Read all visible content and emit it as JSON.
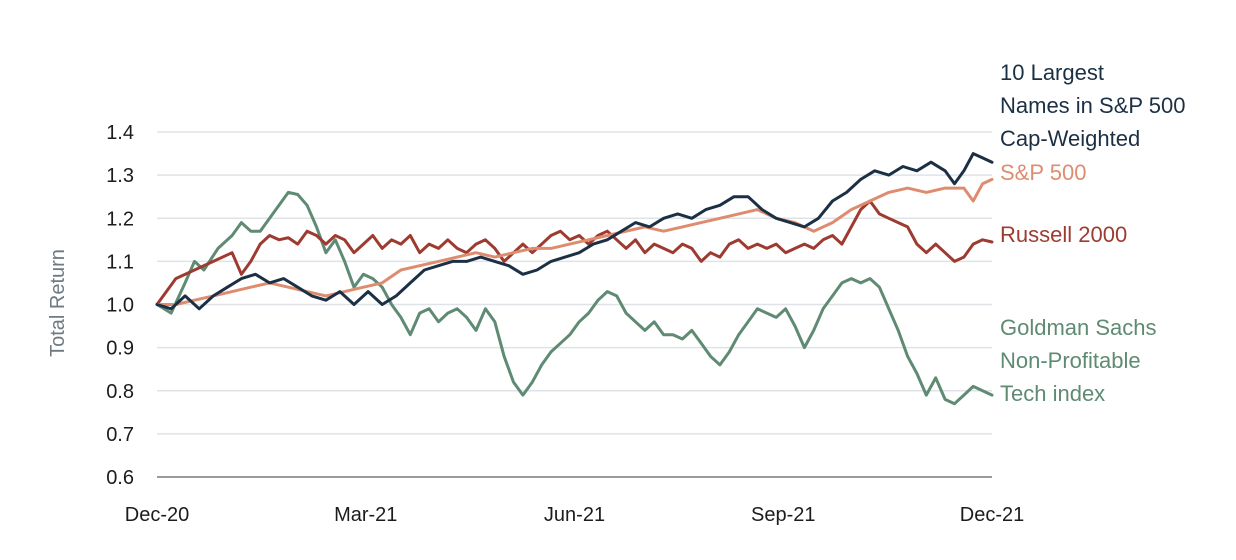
{
  "chart_data": {
    "type": "line",
    "title": "",
    "xlabel": "",
    "ylabel": "Total Return",
    "ylim": [
      0.6,
      1.4
    ],
    "yticks": [
      "1.4",
      "1.3",
      "1.2",
      "1.1",
      "1.0",
      "0.9",
      "0.8",
      "0.7",
      "0.6"
    ],
    "xticks": [
      "Dec-20",
      "Mar-21",
      "Jun-21",
      "Sep-21",
      "Dec-21"
    ],
    "grid": "horizontal",
    "legend": "end-of-line labels",
    "series": [
      {
        "name": "Goldman Sachs Non-Profitable Tech index",
        "label_lines": [
          "Goldman Sachs",
          "Non-Profitable",
          "Tech index"
        ],
        "color": "#5f8a73",
        "points": [
          [
            0,
            1.0
          ],
          [
            3,
            0.98
          ],
          [
            6,
            1.05
          ],
          [
            8,
            1.1
          ],
          [
            10,
            1.08
          ],
          [
            13,
            1.13
          ],
          [
            16,
            1.16
          ],
          [
            18,
            1.19
          ],
          [
            20,
            1.17
          ],
          [
            22,
            1.17
          ],
          [
            24,
            1.2
          ],
          [
            26,
            1.23
          ],
          [
            28,
            1.26
          ],
          [
            30,
            1.255
          ],
          [
            32,
            1.23
          ],
          [
            34,
            1.18
          ],
          [
            36,
            1.12
          ],
          [
            38,
            1.15
          ],
          [
            40,
            1.1
          ],
          [
            42,
            1.04
          ],
          [
            44,
            1.07
          ],
          [
            46,
            1.06
          ],
          [
            48,
            1.04
          ],
          [
            50,
            1.0
          ],
          [
            52,
            0.97
          ],
          [
            54,
            0.93
          ],
          [
            56,
            0.98
          ],
          [
            58,
            0.99
          ],
          [
            60,
            0.96
          ],
          [
            62,
            0.98
          ],
          [
            64,
            0.99
          ],
          [
            66,
            0.97
          ],
          [
            68,
            0.94
          ],
          [
            70,
            0.99
          ],
          [
            72,
            0.96
          ],
          [
            74,
            0.88
          ],
          [
            76,
            0.82
          ],
          [
            78,
            0.79
          ],
          [
            80,
            0.82
          ],
          [
            82,
            0.86
          ],
          [
            84,
            0.89
          ],
          [
            86,
            0.91
          ],
          [
            88,
            0.93
          ],
          [
            90,
            0.96
          ],
          [
            92,
            0.98
          ],
          [
            94,
            1.01
          ],
          [
            96,
            1.03
          ],
          [
            98,
            1.02
          ],
          [
            100,
            0.98
          ],
          [
            102,
            0.96
          ],
          [
            104,
            0.94
          ],
          [
            106,
            0.96
          ],
          [
            108,
            0.93
          ],
          [
            110,
            0.93
          ],
          [
            112,
            0.92
          ],
          [
            114,
            0.94
          ],
          [
            116,
            0.91
          ],
          [
            118,
            0.88
          ],
          [
            120,
            0.86
          ],
          [
            122,
            0.89
          ],
          [
            124,
            0.93
          ],
          [
            126,
            0.96
          ],
          [
            128,
            0.99
          ],
          [
            130,
            0.98
          ],
          [
            132,
            0.97
          ],
          [
            134,
            0.99
          ],
          [
            136,
            0.95
          ],
          [
            138,
            0.9
          ],
          [
            140,
            0.94
          ],
          [
            142,
            0.99
          ],
          [
            144,
            1.02
          ],
          [
            146,
            1.05
          ],
          [
            148,
            1.06
          ],
          [
            150,
            1.05
          ],
          [
            152,
            1.06
          ],
          [
            154,
            1.04
          ],
          [
            156,
            0.99
          ],
          [
            158,
            0.94
          ],
          [
            160,
            0.88
          ],
          [
            162,
            0.84
          ],
          [
            164,
            0.79
          ],
          [
            166,
            0.83
          ],
          [
            168,
            0.78
          ],
          [
            170,
            0.77
          ],
          [
            172,
            0.79
          ],
          [
            174,
            0.81
          ],
          [
            176,
            0.8
          ],
          [
            178,
            0.79
          ]
        ]
      },
      {
        "name": "Russell 2000",
        "color": "#9e3b30",
        "points": [
          [
            0,
            1.0
          ],
          [
            4,
            1.06
          ],
          [
            8,
            1.08
          ],
          [
            12,
            1.1
          ],
          [
            16,
            1.12
          ],
          [
            18,
            1.07
          ],
          [
            20,
            1.1
          ],
          [
            22,
            1.14
          ],
          [
            24,
            1.16
          ],
          [
            26,
            1.15
          ],
          [
            28,
            1.155
          ],
          [
            30,
            1.14
          ],
          [
            32,
            1.17
          ],
          [
            34,
            1.16
          ],
          [
            36,
            1.14
          ],
          [
            38,
            1.16
          ],
          [
            40,
            1.15
          ],
          [
            42,
            1.12
          ],
          [
            44,
            1.14
          ],
          [
            46,
            1.16
          ],
          [
            48,
            1.13
          ],
          [
            50,
            1.15
          ],
          [
            52,
            1.14
          ],
          [
            54,
            1.16
          ],
          [
            56,
            1.12
          ],
          [
            58,
            1.14
          ],
          [
            60,
            1.13
          ],
          [
            62,
            1.15
          ],
          [
            64,
            1.13
          ],
          [
            66,
            1.12
          ],
          [
            68,
            1.14
          ],
          [
            70,
            1.15
          ],
          [
            72,
            1.13
          ],
          [
            74,
            1.1
          ],
          [
            76,
            1.12
          ],
          [
            78,
            1.14
          ],
          [
            80,
            1.12
          ],
          [
            82,
            1.14
          ],
          [
            84,
            1.16
          ],
          [
            86,
            1.17
          ],
          [
            88,
            1.15
          ],
          [
            90,
            1.16
          ],
          [
            92,
            1.14
          ],
          [
            94,
            1.16
          ],
          [
            96,
            1.17
          ],
          [
            98,
            1.15
          ],
          [
            100,
            1.13
          ],
          [
            102,
            1.15
          ],
          [
            104,
            1.12
          ],
          [
            106,
            1.14
          ],
          [
            108,
            1.13
          ],
          [
            110,
            1.12
          ],
          [
            112,
            1.14
          ],
          [
            114,
            1.13
          ],
          [
            116,
            1.1
          ],
          [
            118,
            1.12
          ],
          [
            120,
            1.11
          ],
          [
            122,
            1.14
          ],
          [
            124,
            1.15
          ],
          [
            126,
            1.13
          ],
          [
            128,
            1.14
          ],
          [
            130,
            1.13
          ],
          [
            132,
            1.14
          ],
          [
            134,
            1.12
          ],
          [
            136,
            1.13
          ],
          [
            138,
            1.14
          ],
          [
            140,
            1.13
          ],
          [
            142,
            1.15
          ],
          [
            144,
            1.16
          ],
          [
            146,
            1.14
          ],
          [
            148,
            1.18
          ],
          [
            150,
            1.22
          ],
          [
            152,
            1.24
          ],
          [
            154,
            1.21
          ],
          [
            156,
            1.2
          ],
          [
            158,
            1.19
          ],
          [
            160,
            1.18
          ],
          [
            162,
            1.14
          ],
          [
            164,
            1.12
          ],
          [
            166,
            1.14
          ],
          [
            168,
            1.12
          ],
          [
            170,
            1.1
          ],
          [
            172,
            1.11
          ],
          [
            174,
            1.14
          ],
          [
            176,
            1.15
          ],
          [
            178,
            1.145
          ]
        ]
      },
      {
        "name": "S&P 500",
        "color": "#de8c6f",
        "points": [
          [
            0,
            1.0
          ],
          [
            4,
            1.0
          ],
          [
            8,
            1.01
          ],
          [
            12,
            1.02
          ],
          [
            16,
            1.03
          ],
          [
            20,
            1.04
          ],
          [
            24,
            1.05
          ],
          [
            28,
            1.04
          ],
          [
            32,
            1.03
          ],
          [
            36,
            1.02
          ],
          [
            40,
            1.03
          ],
          [
            44,
            1.04
          ],
          [
            48,
            1.05
          ],
          [
            52,
            1.08
          ],
          [
            56,
            1.09
          ],
          [
            60,
            1.1
          ],
          [
            64,
            1.11
          ],
          [
            68,
            1.12
          ],
          [
            72,
            1.11
          ],
          [
            76,
            1.12
          ],
          [
            80,
            1.13
          ],
          [
            84,
            1.13
          ],
          [
            88,
            1.14
          ],
          [
            92,
            1.15
          ],
          [
            96,
            1.16
          ],
          [
            100,
            1.17
          ],
          [
            104,
            1.18
          ],
          [
            108,
            1.17
          ],
          [
            112,
            1.18
          ],
          [
            116,
            1.19
          ],
          [
            120,
            1.2
          ],
          [
            124,
            1.21
          ],
          [
            128,
            1.22
          ],
          [
            132,
            1.2
          ],
          [
            136,
            1.19
          ],
          [
            140,
            1.17
          ],
          [
            144,
            1.19
          ],
          [
            148,
            1.22
          ],
          [
            152,
            1.24
          ],
          [
            156,
            1.26
          ],
          [
            160,
            1.27
          ],
          [
            164,
            1.26
          ],
          [
            168,
            1.27
          ],
          [
            172,
            1.27
          ],
          [
            174,
            1.24
          ],
          [
            176,
            1.28
          ],
          [
            178,
            1.29
          ]
        ]
      },
      {
        "name": "10 Largest Names in S&P 500 Cap-Weighted",
        "label_lines": [
          "10 Largest",
          "Names in S&P 500",
          "Cap-Weighted"
        ],
        "color": "#1c3045",
        "points": [
          [
            0,
            1.0
          ],
          [
            3,
            0.99
          ],
          [
            6,
            1.02
          ],
          [
            9,
            0.99
          ],
          [
            12,
            1.02
          ],
          [
            15,
            1.04
          ],
          [
            18,
            1.06
          ],
          [
            21,
            1.07
          ],
          [
            24,
            1.05
          ],
          [
            27,
            1.06
          ],
          [
            30,
            1.04
          ],
          [
            33,
            1.02
          ],
          [
            36,
            1.01
          ],
          [
            39,
            1.03
          ],
          [
            42,
            1.0
          ],
          [
            45,
            1.03
          ],
          [
            48,
            1.0
          ],
          [
            51,
            1.02
          ],
          [
            54,
            1.05
          ],
          [
            57,
            1.08
          ],
          [
            60,
            1.09
          ],
          [
            63,
            1.1
          ],
          [
            66,
            1.1
          ],
          [
            69,
            1.11
          ],
          [
            72,
            1.1
          ],
          [
            75,
            1.09
          ],
          [
            78,
            1.07
          ],
          [
            81,
            1.08
          ],
          [
            84,
            1.1
          ],
          [
            87,
            1.11
          ],
          [
            90,
            1.12
          ],
          [
            93,
            1.14
          ],
          [
            96,
            1.15
          ],
          [
            99,
            1.17
          ],
          [
            102,
            1.19
          ],
          [
            105,
            1.18
          ],
          [
            108,
            1.2
          ],
          [
            111,
            1.21
          ],
          [
            114,
            1.2
          ],
          [
            117,
            1.22
          ],
          [
            120,
            1.23
          ],
          [
            123,
            1.25
          ],
          [
            126,
            1.25
          ],
          [
            129,
            1.22
          ],
          [
            132,
            1.2
          ],
          [
            135,
            1.19
          ],
          [
            138,
            1.18
          ],
          [
            141,
            1.2
          ],
          [
            144,
            1.24
          ],
          [
            147,
            1.26
          ],
          [
            150,
            1.29
          ],
          [
            153,
            1.31
          ],
          [
            156,
            1.3
          ],
          [
            159,
            1.32
          ],
          [
            162,
            1.31
          ],
          [
            165,
            1.33
          ],
          [
            168,
            1.31
          ],
          [
            170,
            1.28
          ],
          [
            172,
            1.31
          ],
          [
            174,
            1.35
          ],
          [
            176,
            1.34
          ],
          [
            178,
            1.33
          ]
        ]
      }
    ]
  }
}
